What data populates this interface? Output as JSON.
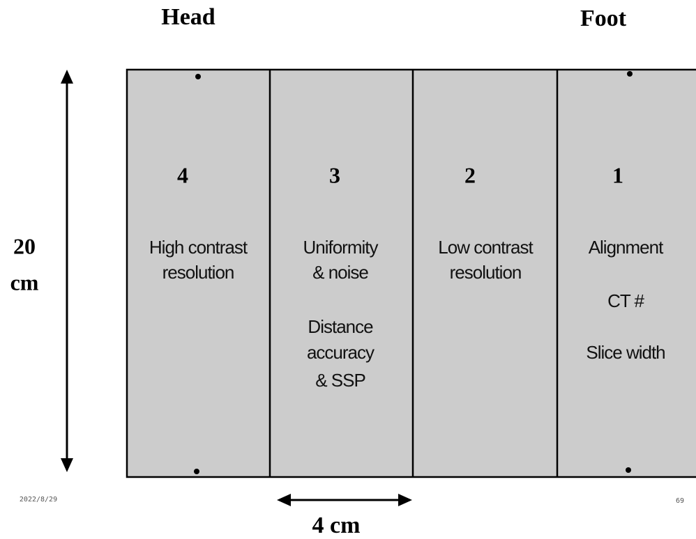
{
  "header": {
    "left": "Head",
    "right": "Foot"
  },
  "height_label": {
    "number": "20",
    "unit": "cm"
  },
  "width_label": "4 cm",
  "footer": {
    "date": "2022/8/29",
    "page": "69"
  },
  "panels": [
    {
      "number": "4",
      "lines": [
        "High contrast",
        "resolution"
      ]
    },
    {
      "number": "3",
      "lines": [
        "Uniformity",
        "& noise",
        "Distance",
        "accuracy",
        "& SSP"
      ]
    },
    {
      "number": "2",
      "lines": [
        "Low contrast",
        "resolution"
      ]
    },
    {
      "number": "1",
      "lines": [
        "Alignment",
        "CT #",
        "Slice width"
      ]
    }
  ]
}
